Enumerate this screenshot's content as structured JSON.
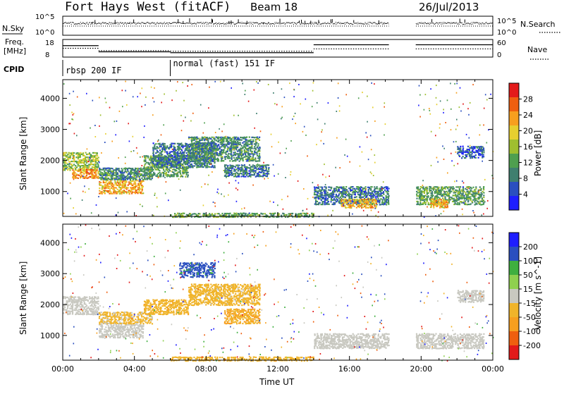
{
  "header": {
    "station": "Fort Hays West (fitACF)",
    "beam": "Beam 18",
    "date": "26/Jul/2013"
  },
  "status_panels": {
    "sky_label": "N.Sky",
    "search_label": "N.Search",
    "freq_label_line1": "Freq.",
    "freq_label_line2": "[MHz]",
    "nave_label": "Nave",
    "cpid_label": "CPID",
    "sky_ticks": [
      "10^5",
      "10^0"
    ],
    "search_ticks": [
      "10^5",
      "10^0"
    ],
    "freq_ticks": [
      "18",
      "8"
    ],
    "nave_ticks": [
      "60",
      "0"
    ],
    "cpid_modes": [
      {
        "label": "rbsp 200 IF",
        "start": 0.0,
        "end": 6.0
      },
      {
        "label": "normal (fast) 151 IF",
        "start": 6.0,
        "end": 24.0
      }
    ],
    "freq_steps": [
      {
        "t0": 0.0,
        "t1": 2.0,
        "v": 14.5
      },
      {
        "t0": 2.0,
        "t1": 6.0,
        "v": 11.0
      },
      {
        "t0": 6.0,
        "t1": 14.0,
        "v": 10.5
      },
      {
        "t0": 14.0,
        "t1": 18.2,
        "v": 15.0
      },
      {
        "t0": 19.7,
        "t1": 24.0,
        "v": 15.0
      }
    ],
    "nave_steps": [
      {
        "t0": 0.0,
        "t1": 2.0,
        "v": 30
      },
      {
        "t0": 2.0,
        "t1": 6.0,
        "v": 22
      },
      {
        "t0": 6.0,
        "t1": 14.0,
        "v": 20
      },
      {
        "t0": 14.0,
        "t1": 18.2,
        "v": 28
      },
      {
        "t0": 19.7,
        "t1": 24.0,
        "v": 28
      }
    ],
    "data_gap": [
      18.2,
      19.7
    ]
  },
  "chart_data": [
    {
      "type": "heatmap",
      "quantity": "power",
      "ylabel": "Slant Range [km]",
      "xlabel": "",
      "xlim": [
        0,
        24
      ],
      "ylim": [
        200,
        4600
      ],
      "yticks": [
        "1000",
        "2000",
        "3000",
        "4000"
      ],
      "colorbar": {
        "label": "Power [dB]",
        "ticks": [
          "28",
          "24",
          "20",
          "16",
          "12",
          "8",
          "4"
        ],
        "range": [
          0,
          32
        ],
        "colors": [
          "#1e1eff",
          "#2a4fbf",
          "#3f7f6f",
          "#4f9f4f",
          "#9fbf2f",
          "#e7cf2f",
          "#f79f1f",
          "#ef5f0f",
          "#e31a1a"
        ]
      },
      "regions": [
        {
          "t0": 0.0,
          "t1": 2.0,
          "r0": 1700,
          "r1": 2300,
          "v": 16
        },
        {
          "t0": 0.5,
          "t1": 2.0,
          "r0": 1450,
          "r1": 1750,
          "v": 24
        },
        {
          "t0": 2.0,
          "t1": 4.5,
          "r0": 950,
          "r1": 1400,
          "v": 22
        },
        {
          "t0": 2.0,
          "t1": 5.0,
          "r0": 1400,
          "r1": 1800,
          "v": 10
        },
        {
          "t0": 4.5,
          "t1": 7.0,
          "r0": 1500,
          "r1": 2200,
          "v": 12
        },
        {
          "t0": 5.0,
          "t1": 8.5,
          "r0": 1800,
          "r1": 2600,
          "v": 8
        },
        {
          "t0": 7.0,
          "t1": 11.0,
          "r0": 2000,
          "r1": 2800,
          "v": 10
        },
        {
          "t0": 9.0,
          "t1": 11.5,
          "r0": 1500,
          "r1": 1900,
          "v": 8
        },
        {
          "t0": 14.0,
          "t1": 18.2,
          "r0": 600,
          "r1": 1200,
          "v": 8
        },
        {
          "t0": 15.5,
          "t1": 17.5,
          "r0": 500,
          "r1": 800,
          "v": 22
        },
        {
          "t0": 19.7,
          "t1": 23.5,
          "r0": 600,
          "r1": 1200,
          "v": 12
        },
        {
          "t0": 20.5,
          "t1": 21.5,
          "r0": 500,
          "r1": 800,
          "v": 22
        },
        {
          "t0": 22.0,
          "t1": 23.5,
          "r0": 2100,
          "r1": 2500,
          "v": 6
        },
        {
          "t0": 6.0,
          "t1": 14.0,
          "r0": 200,
          "r1": 350,
          "v": 12
        }
      ]
    },
    {
      "type": "heatmap",
      "quantity": "velocity",
      "ylabel": "Slant Range [km]",
      "xlabel": "Time UT",
      "xlim": [
        0,
        24
      ],
      "ylim": [
        200,
        4600
      ],
      "yticks": [
        "1000",
        "2000",
        "3000",
        "4000"
      ],
      "xticks": [
        "00:00",
        "04:00",
        "08:00",
        "12:00",
        "16:00",
        "20:00",
        "00:00"
      ],
      "colorbar": {
        "label": "Velocity [m s^-1]",
        "ticks": [
          "200",
          "100",
          "50",
          "15",
          "-15",
          "-50",
          "-100",
          "-200"
        ],
        "range": [
          -250,
          250
        ],
        "colors": [
          "#e31a1a",
          "#ef5f0f",
          "#f79f1f",
          "#f0b42a",
          "#c8c8c0",
          "#8fd04f",
          "#3faf3f",
          "#2a4fbf",
          "#1e1eff"
        ]
      },
      "regions": [
        {
          "t0": 0.0,
          "t1": 2.0,
          "r0": 1700,
          "r1": 2300,
          "v": 0
        },
        {
          "t0": 2.0,
          "t1": 4.5,
          "r0": 950,
          "r1": 1400,
          "v": 0
        },
        {
          "t0": 2.0,
          "t1": 5.0,
          "r0": 1400,
          "r1": 1800,
          "v": -40
        },
        {
          "t0": 4.5,
          "t1": 7.0,
          "r0": 1700,
          "r1": 2200,
          "v": -60
        },
        {
          "t0": 7.0,
          "t1": 11.0,
          "r0": 2000,
          "r1": 2700,
          "v": -50
        },
        {
          "t0": 6.5,
          "t1": 8.5,
          "r0": 2900,
          "r1": 3400,
          "v": 160
        },
        {
          "t0": 9.0,
          "t1": 11.0,
          "r0": 1400,
          "r1": 1900,
          "v": -80
        },
        {
          "t0": 14.0,
          "t1": 18.2,
          "r0": 600,
          "r1": 1100,
          "v": 0
        },
        {
          "t0": 19.7,
          "t1": 23.5,
          "r0": 600,
          "r1": 1100,
          "v": 0
        },
        {
          "t0": 22.0,
          "t1": 23.5,
          "r0": 2100,
          "r1": 2500,
          "v": 0
        },
        {
          "t0": 6.0,
          "t1": 14.0,
          "r0": 200,
          "r1": 350,
          "v": -60
        }
      ]
    }
  ]
}
